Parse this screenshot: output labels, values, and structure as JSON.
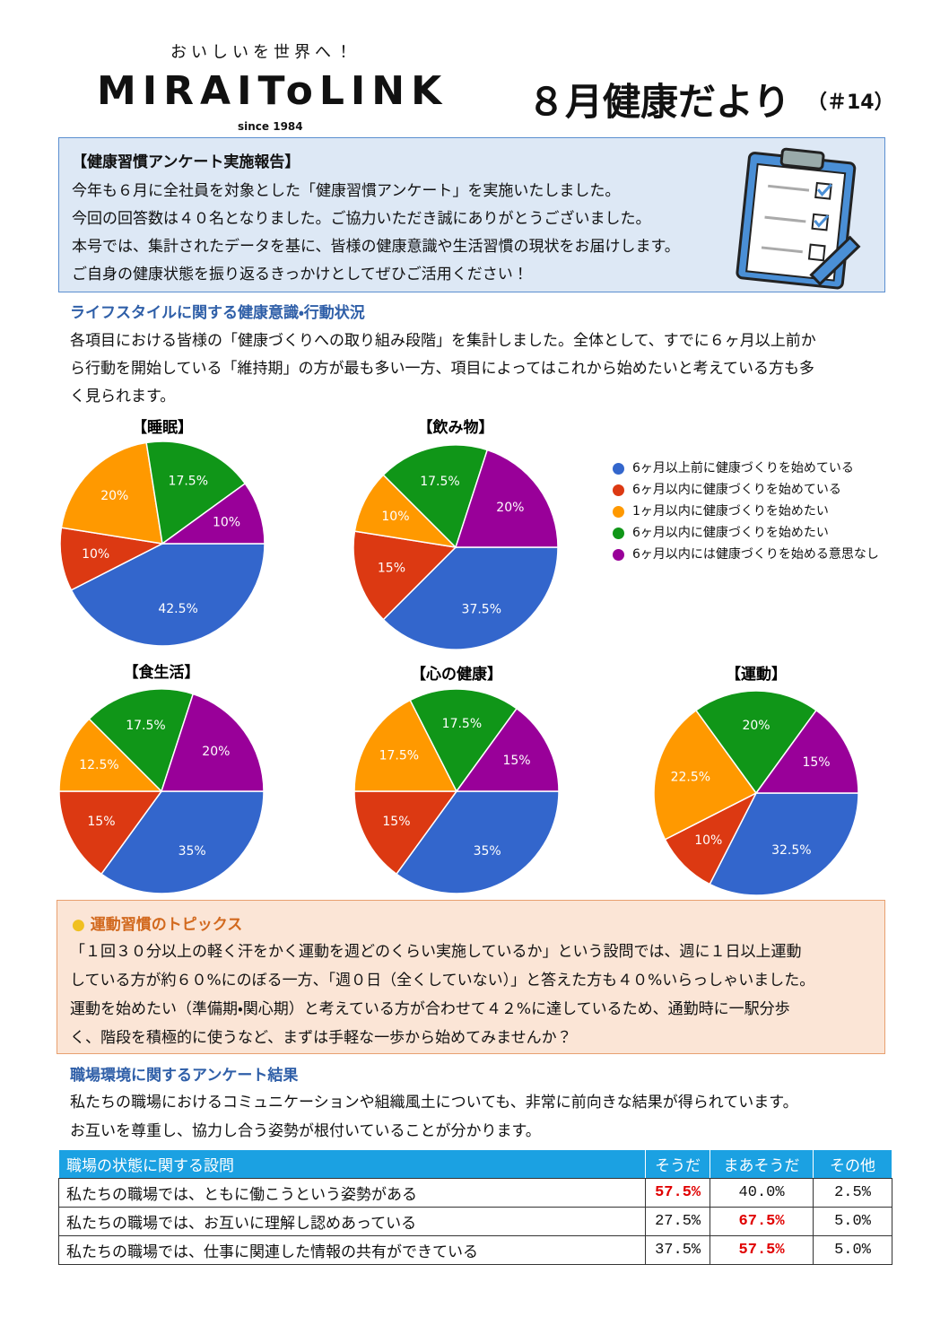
{
  "header": {
    "tagline": "おいしいを世界へ！",
    "logo": "MIRAIToLINK",
    "since": "since 1984",
    "title": "８月健康だより",
    "issue": "（＃14）"
  },
  "intro": {
    "heading": "【健康習慣アンケート実施報告】",
    "lines": [
      "今年も６月に全社員を対象とした「健康習慣アンケート」を実施いたしました。",
      "今回の回答数は４０名となりました。ご協力いただき誠にありがとうございました。",
      "本号では、集計されたデータを基に、皆様の健康意識や生活習慣の現状をお届けします。",
      "ご自身の健康状態を振り返るきっかけとしてぜひご活用ください！"
    ]
  },
  "lifestyle": {
    "heading": "ライフスタイルに関する健康意識・行動状況",
    "lines": [
      "各項目における皆様の「健康づくりへの取り組み段階」を集計しました。全体として、すでに６ヶ月以上前か",
      "ら行動を開始している「維持期」の方が最も多い一方、項目によってはこれから始めたいと考えている方も多",
      "く見られます。"
    ]
  },
  "legend": {
    "categories": [
      "6ヶ月以上前に健康づくりを始めている",
      "6ヶ月以内に健康づくりを始めている",
      "1ヶ月以内に健康づくりを始めたい",
      "6ヶ月以内に健康づくりを始めたい",
      "6ヶ月以内には健康づくりを始める意思なし"
    ],
    "colors": [
      "#3366cc",
      "#dc3912",
      "#ff9900",
      "#109618",
      "#990099"
    ]
  },
  "chart_data": [
    {
      "type": "pie",
      "title": "【睡眠】",
      "values": [
        42.5,
        10,
        20,
        17.5,
        10
      ],
      "value_labels": [
        "42.5%",
        "10%",
        "20%",
        "17.5%",
        "10%"
      ]
    },
    {
      "type": "pie",
      "title": "【飲み物】",
      "values": [
        37.5,
        15,
        10,
        17.5,
        20
      ],
      "value_labels": [
        "37.5%",
        "15%",
        "10%",
        "17.5%",
        "20%"
      ]
    },
    {
      "type": "pie",
      "title": "【食生活】",
      "values": [
        35,
        15,
        12.5,
        17.5,
        20
      ],
      "value_labels": [
        "35%",
        "15%",
        "12.5%",
        "17.5%",
        "20%"
      ]
    },
    {
      "type": "pie",
      "title": "【心の健康】",
      "values": [
        35,
        15,
        17.5,
        17.5,
        15
      ],
      "value_labels": [
        "35%",
        "15%",
        "17.5%",
        "17.5%",
        "15%"
      ]
    },
    {
      "type": "pie",
      "title": "【運動】",
      "values": [
        32.5,
        10,
        22.5,
        20,
        15
      ],
      "value_labels": [
        "32.5%",
        "10%",
        "22.5%",
        "20%",
        "15%"
      ]
    }
  ],
  "topic": {
    "heading": "運動習慣のトピックス",
    "lines": [
      "「１回３０分以上の軽く汗をかく運動を週どのくらい実施しているか」という設問では、週に１日以上運動",
      "している方が約６０%にのぼる一方、「週０日（全くしていない）」と答えた方も４０%いらっしゃいました。",
      "運動を始めたい（準備期・関心期）と考えている方が合わせて４２%に達しているため、通勤時に一駅分歩",
      "く、階段を積極的に使うなど、まずは手軽な一歩から始めてみませんか？"
    ]
  },
  "workplace": {
    "heading": "職場環境に関するアンケート結果",
    "lines": [
      "私たちの職場におけるコミュニケーションや組織風土についても、非常に前向きな結果が得られています。",
      "お互いを尊重し、協力し合う姿勢が根付いていることが分かります。"
    ]
  },
  "table": {
    "header": [
      "職場の状態に関する設問",
      "そうだ",
      "まあそうだ",
      "その他"
    ],
    "rows": [
      [
        "私たちの職場では、ともに働こうという姿勢がある",
        "57.5%",
        "40.0%",
        "2.5%"
      ],
      [
        "私たちの職場では、お互いに理解し認めあっている",
        "27.5%",
        "67.5%",
        "5.0%"
      ],
      [
        "私たちの職場では、仕事に関連した情報の共有ができている",
        "37.5%",
        "57.5%",
        "5.0%"
      ]
    ]
  }
}
